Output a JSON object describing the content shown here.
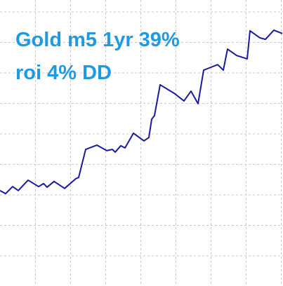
{
  "chart_data": {
    "type": "line",
    "title": "Gold m5 1yr 39%",
    "subtitle": "roi 4% DD",
    "x": [
      0,
      0.16,
      0.36,
      0.52,
      0.8,
      1.1,
      1.24,
      1.34,
      1.54,
      1.84,
      2.16,
      2.24,
      2.44,
      2.6,
      2.76,
      3.04,
      3.2,
      3.28,
      3.44,
      3.56,
      3.8,
      4.1,
      4.24,
      4.32,
      4.4,
      4.56,
      4.96,
      5.24,
      5.44,
      5.64,
      5.8,
      6,
      6.2,
      6.36,
      6.48,
      6.74,
      7.04,
      7.12,
      7.4,
      7.56,
      7.8,
      8.04
    ],
    "values": [
      3.13,
      3.03,
      3.26,
      3.13,
      3.47,
      3.26,
      3.36,
      3.24,
      3.43,
      3.2,
      3.52,
      3.56,
      4.48,
      4.55,
      4.62,
      4.44,
      4.48,
      4.39,
      4.6,
      4.53,
      5.01,
      4.76,
      4.87,
      5.47,
      5.59,
      6.6,
      6.32,
      6.07,
      6.39,
      5.98,
      7.08,
      7.17,
      7.26,
      7.08,
      7.77,
      7.56,
      7.45,
      8.37,
      8.14,
      8.09,
      8.39,
      8.28
    ],
    "color": "#1a1aa0",
    "xlim": [
      0,
      8.06
    ],
    "xticks": [
      1,
      2,
      3,
      4,
      5,
      6,
      7,
      8
    ],
    "ylim": [
      0,
      9.38
    ],
    "yticks": [
      1,
      2,
      3,
      4,
      5,
      6,
      7,
      8,
      9
    ],
    "grid": true
  }
}
